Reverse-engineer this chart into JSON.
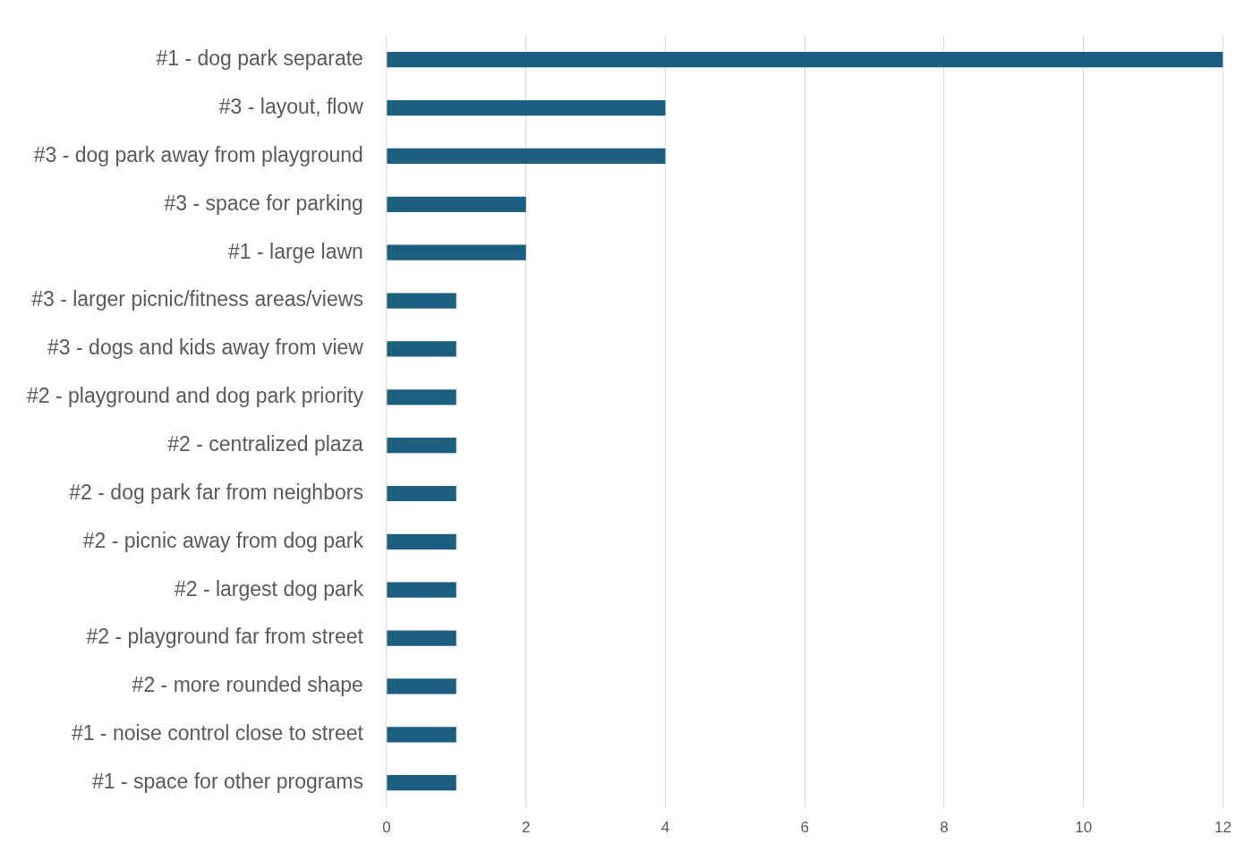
{
  "chart_data": {
    "type": "bar",
    "orientation": "horizontal",
    "categories": [
      "#1 - dog park separate",
      "#3 - layout, flow",
      "#3 - dog park away from playground",
      "#3 - space for parking",
      "#1 - large lawn",
      "#3 - larger picnic/fitness areas/views",
      "#3 - dogs and kids away from view",
      "#2 - playground and dog park priority",
      "#2 - centralized plaza",
      "#2 - dog park far from neighbors",
      "#2 - picnic away from dog park",
      "#2 - largest dog park",
      "#2 - playground far from street",
      "#2 - more rounded shape",
      "#1 - noise control close to street",
      "#1 - space for other programs"
    ],
    "values": [
      12,
      4,
      4,
      2,
      2,
      1,
      1,
      1,
      1,
      1,
      1,
      1,
      1,
      1,
      1,
      1
    ],
    "color": "#1b5e80",
    "xlim": [
      0,
      12
    ],
    "xticks": [
      0,
      2,
      4,
      6,
      8,
      10,
      12
    ],
    "grid": "x",
    "legend": false
  }
}
